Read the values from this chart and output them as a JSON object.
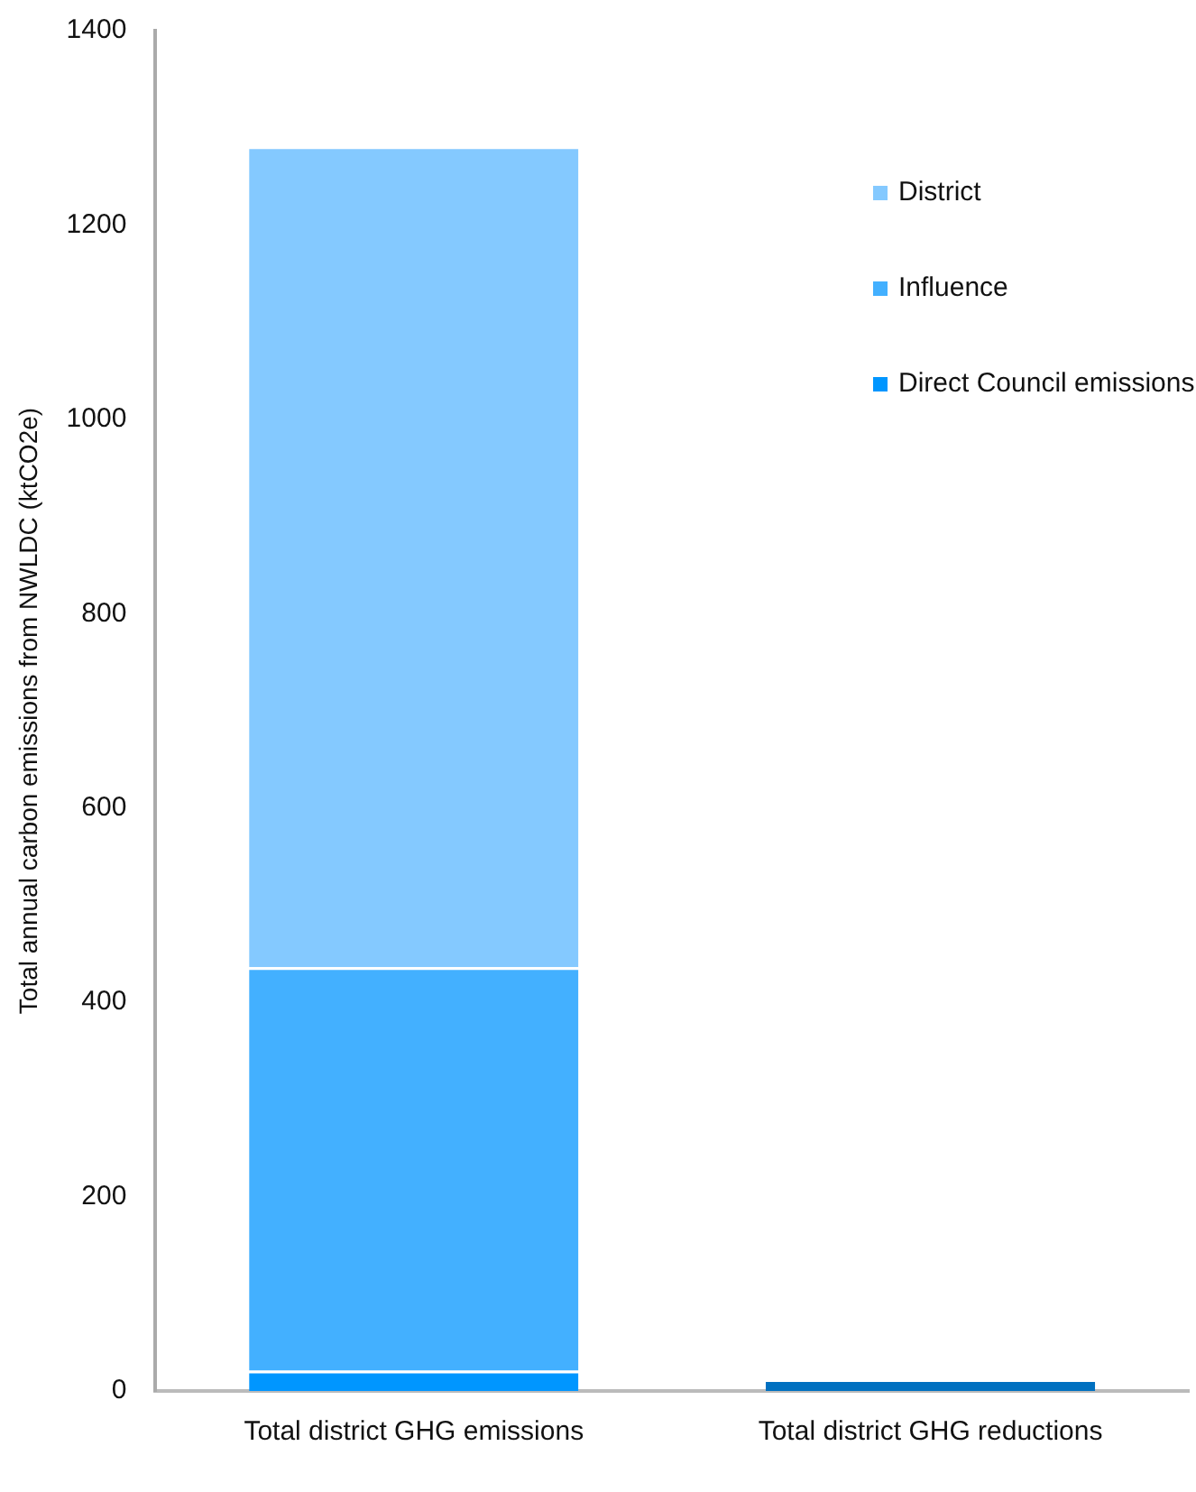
{
  "chart_data": {
    "type": "bar",
    "stacked": true,
    "ylabel": "Total annual carbon emissions from NWLDC (ktCO2e)",
    "categories": [
      "Total district GHG emissions",
      "Total district GHG reductions"
    ],
    "series": [
      {
        "name": "Direct Council emissions",
        "color": "#0096ff",
        "colors": [
          "#0096ff",
          "#0070c0"
        ],
        "values": [
          21,
          12
        ]
      },
      {
        "name": "Influence",
        "color": "#43b0ff",
        "values": [
          415,
          null
        ]
      },
      {
        "name": "District",
        "color": "#84c9ff",
        "values": [
          845,
          null
        ]
      }
    ],
    "ylim": [
      0,
      1400
    ],
    "yticks": [
      0,
      200,
      400,
      600,
      800,
      1000,
      1200,
      1400
    ],
    "grid": false,
    "legend": "top right"
  }
}
